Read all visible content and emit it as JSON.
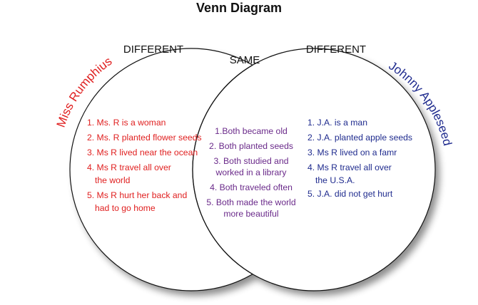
{
  "title": "Venn Diagram",
  "headers": {
    "left": "DIFFERENT",
    "center": "SAME",
    "right": "DIFFERENT"
  },
  "captions": {
    "left": "Miss Rumphius",
    "right": "Johnny Appleseed"
  },
  "colors": {
    "left": "#e02020",
    "center": "#6a2a8a",
    "right": "#1f2b8e",
    "outline": "#111111"
  },
  "left_items": [
    [
      "1. Ms. R is a woman"
    ],
    [
      "2. Ms. R planted flower seeds"
    ],
    [
      "3. Ms R lived near the ocean"
    ],
    [
      "4. Ms R travel all over",
      "the world"
    ],
    [
      "5. Ms R hurt her back and",
      "had to go home"
    ]
  ],
  "center_items": [
    [
      "1.Both became old"
    ],
    [
      "2. Both planted seeds"
    ],
    [
      "3. Both studied and",
      "worked in a library"
    ],
    [
      "4. Both traveled often"
    ],
    [
      "5. Both made the world",
      "more beautiful"
    ]
  ],
  "right_items": [
    [
      "1. J.A. is a man"
    ],
    [
      "2. J.A. planted apple seeds"
    ],
    [
      "3. Ms R lived on a famr"
    ],
    [
      "4. Ms R travel all over",
      "the U.S.A."
    ],
    [
      "5. J.A. did not get hurt"
    ]
  ]
}
